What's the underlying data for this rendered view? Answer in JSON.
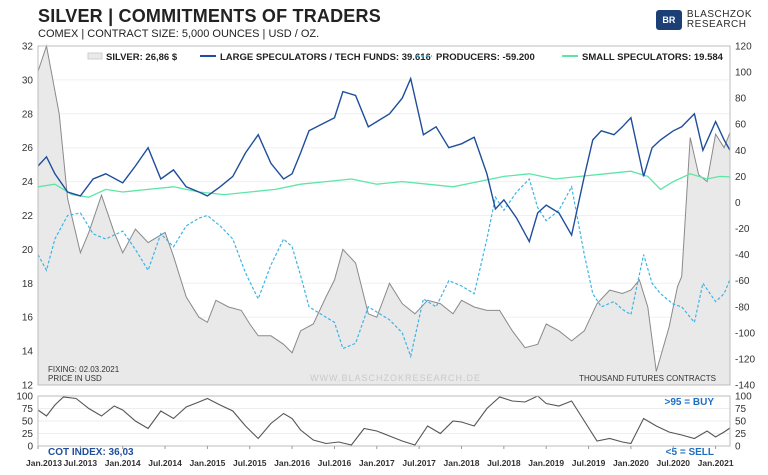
{
  "header": {
    "title": "SILVER | COMMITMENTS OF TRADERS",
    "subtitle": "COMEX | CONTRACT SIZE: 5,000 OUNCES | USD / OZ.",
    "logo_line1": "BLASCHZOK",
    "logo_line2": "RESEARCH"
  },
  "colors": {
    "silver": "#8a8a8a",
    "silver_fill": "#e9e9e9",
    "large_specs": "#1f4e9c",
    "producers": "#3cb4e6",
    "small_specs": "#5ce6a6",
    "cot": "#555555",
    "buy": "#1f6fc0"
  },
  "notes": {
    "fixing": "FIXING: 02.03.2021",
    "unit": "PRICE IN USD",
    "watermark": "WWW.BLASCHZOKRESEARCH.DE",
    "right_unit": "THOUSAND FUTURES CONTRACTS",
    "buy": ">95 = BUY",
    "sell": "<5 = SELL",
    "cot_index": "COT INDEX: 36,03"
  },
  "chart_data": [
    {
      "type": "line",
      "x_labels": [
        "Jan.2013",
        "Jul.2013",
        "Jan.2014",
        "Jul.2014",
        "Jan.2015",
        "Jul.2015",
        "Jan.2016",
        "Jul.2016",
        "Jan.2017",
        "Jul.2017",
        "Jan.2018",
        "Jul.2018",
        "Jan.2019",
        "Jul.2019",
        "Jan.2020",
        "Jul.2020",
        "Jan.2021"
      ],
      "x_range": [
        2013.0,
        2021.17
      ],
      "y_left": {
        "label": "",
        "ylim": [
          12,
          32
        ],
        "ticks": [
          12,
          14,
          16,
          18,
          20,
          22,
          24,
          26,
          28,
          30,
          32
        ]
      },
      "y_right": {
        "label": "THOUSAND FUTURES CONTRACTS",
        "ylim": [
          -140,
          120
        ],
        "ticks": [
          -140,
          -120,
          -100,
          -80,
          -60,
          -40,
          -20,
          0,
          20,
          40,
          60,
          80,
          100,
          120
        ]
      },
      "series": [
        {
          "name": "SILVER: 26,86 $",
          "axis": "left",
          "style": "area",
          "x": [
            2013.0,
            2013.1,
            2013.25,
            2013.35,
            2013.5,
            2013.6,
            2013.75,
            2013.9,
            2014.0,
            2014.15,
            2014.3,
            2014.5,
            2014.6,
            2014.75,
            2014.9,
            2015.0,
            2015.1,
            2015.25,
            2015.4,
            2015.5,
            2015.6,
            2015.75,
            2015.9,
            2016.0,
            2016.1,
            2016.25,
            2016.4,
            2016.5,
            2016.6,
            2016.75,
            2016.9,
            2017.0,
            2017.15,
            2017.3,
            2017.45,
            2017.6,
            2017.75,
            2017.9,
            2018.0,
            2018.15,
            2018.3,
            2018.45,
            2018.6,
            2018.75,
            2018.9,
            2019.0,
            2019.15,
            2019.3,
            2019.45,
            2019.6,
            2019.75,
            2019.9,
            2020.0,
            2020.1,
            2020.2,
            2020.3,
            2020.45,
            2020.55,
            2020.6,
            2020.7,
            2020.8,
            2020.9,
            2021.0,
            2021.1,
            2021.17
          ],
          "values": [
            30.5,
            32.0,
            28.0,
            23.0,
            19.8,
            21.0,
            23.2,
            21.0,
            19.8,
            21.2,
            20.4,
            21.0,
            19.6,
            17.2,
            16.0,
            15.7,
            17.0,
            16.6,
            16.4,
            15.6,
            14.9,
            14.9,
            14.4,
            13.9,
            15.2,
            15.6,
            17.2,
            18.2,
            20.0,
            19.2,
            16.2,
            16.0,
            18.0,
            16.8,
            16.2,
            17.0,
            16.8,
            16.2,
            17.0,
            16.6,
            16.4,
            16.4,
            15.2,
            14.2,
            14.4,
            15.6,
            15.2,
            14.6,
            15.2,
            16.8,
            17.6,
            17.4,
            17.6,
            18.2,
            16.6,
            12.8,
            15.4,
            17.8,
            18.4,
            26.6,
            24.4,
            24.0,
            26.8,
            26.0,
            26.9
          ]
        },
        {
          "name": "LARGE SPECULATORS / TECH FUNDS: 39.616",
          "axis": "right",
          "style": "solid",
          "x": [
            2013.0,
            2013.1,
            2013.2,
            2013.35,
            2013.5,
            2013.65,
            2013.8,
            2014.0,
            2014.15,
            2014.3,
            2014.45,
            2014.6,
            2014.75,
            2014.9,
            2015.0,
            2015.15,
            2015.3,
            2015.45,
            2015.6,
            2015.75,
            2015.9,
            2016.0,
            2016.1,
            2016.2,
            2016.35,
            2016.5,
            2016.6,
            2016.75,
            2016.9,
            2017.0,
            2017.15,
            2017.3,
            2017.4,
            2017.55,
            2017.7,
            2017.85,
            2018.0,
            2018.15,
            2018.3,
            2018.4,
            2018.5,
            2018.65,
            2018.8,
            2018.9,
            2019.0,
            2019.15,
            2019.3,
            2019.45,
            2019.55,
            2019.65,
            2019.8,
            2019.9,
            2020.0,
            2020.15,
            2020.25,
            2020.35,
            2020.5,
            2020.6,
            2020.75,
            2020.85,
            2021.0,
            2021.1,
            2021.17
          ],
          "values": [
            28,
            35,
            22,
            8,
            5,
            18,
            22,
            15,
            28,
            42,
            18,
            25,
            12,
            8,
            5,
            12,
            20,
            38,
            52,
            30,
            18,
            22,
            38,
            55,
            60,
            65,
            85,
            82,
            58,
            62,
            68,
            80,
            95,
            52,
            58,
            42,
            45,
            50,
            22,
            -5,
            2,
            -12,
            -30,
            -8,
            -2,
            -8,
            -25,
            20,
            48,
            55,
            52,
            58,
            65,
            20,
            42,
            48,
            55,
            58,
            68,
            40,
            62,
            48,
            40
          ]
        },
        {
          "name": "PRODUCERS: -59.200",
          "axis": "right",
          "style": "dashed",
          "x": [
            2013.0,
            2013.1,
            2013.2,
            2013.35,
            2013.5,
            2013.65,
            2013.8,
            2014.0,
            2014.15,
            2014.3,
            2014.45,
            2014.6,
            2014.75,
            2014.9,
            2015.0,
            2015.15,
            2015.3,
            2015.45,
            2015.6,
            2015.75,
            2015.9,
            2016.0,
            2016.1,
            2016.2,
            2016.35,
            2016.5,
            2016.6,
            2016.75,
            2016.9,
            2017.0,
            2017.15,
            2017.3,
            2017.4,
            2017.55,
            2017.7,
            2017.85,
            2018.0,
            2018.15,
            2018.3,
            2018.4,
            2018.5,
            2018.65,
            2018.8,
            2018.9,
            2019.0,
            2019.15,
            2019.3,
            2019.45,
            2019.55,
            2019.65,
            2019.8,
            2019.9,
            2020.0,
            2020.15,
            2020.25,
            2020.35,
            2020.5,
            2020.6,
            2020.75,
            2020.85,
            2021.0,
            2021.1,
            2021.17
          ],
          "values": [
            -40,
            -52,
            -28,
            -10,
            -8,
            -24,
            -28,
            -22,
            -36,
            -52,
            -24,
            -34,
            -18,
            -12,
            -10,
            -18,
            -28,
            -54,
            -74,
            -48,
            -28,
            -34,
            -56,
            -80,
            -86,
            -92,
            -112,
            -108,
            -80,
            -84,
            -90,
            -100,
            -118,
            -74,
            -80,
            -60,
            -64,
            -70,
            -28,
            4,
            -6,
            8,
            18,
            -4,
            -14,
            -6,
            12,
            -40,
            -70,
            -80,
            -76,
            -82,
            -86,
            -40,
            -62,
            -70,
            -78,
            -80,
            -92,
            -62,
            -76,
            -70,
            -59
          ]
        },
        {
          "name": "SMALL SPECULATORS: 19.584",
          "axis": "right",
          "style": "solid",
          "x": [
            2013.0,
            2013.2,
            2013.4,
            2013.6,
            2013.8,
            2014.0,
            2014.3,
            2014.6,
            2014.9,
            2015.2,
            2015.5,
            2015.8,
            2016.1,
            2016.4,
            2016.7,
            2017.0,
            2017.3,
            2017.6,
            2017.9,
            2018.2,
            2018.5,
            2018.8,
            2019.1,
            2019.4,
            2019.7,
            2020.0,
            2020.2,
            2020.35,
            2020.5,
            2020.7,
            2020.9,
            2021.05,
            2021.17
          ],
          "values": [
            12,
            14,
            6,
            4,
            10,
            8,
            10,
            12,
            8,
            6,
            8,
            10,
            14,
            16,
            18,
            14,
            16,
            14,
            12,
            16,
            20,
            22,
            18,
            20,
            22,
            24,
            20,
            10,
            16,
            22,
            18,
            20,
            19.6
          ]
        }
      ]
    },
    {
      "type": "line",
      "x_range": [
        2013.0,
        2021.17
      ],
      "ylim": [
        0,
        100
      ],
      "y_ticks": [
        0,
        25,
        50,
        75,
        100
      ],
      "series": [
        {
          "name": "COT INDEX: 36,03",
          "x": [
            2013.0,
            2013.1,
            2013.2,
            2013.3,
            2013.45,
            2013.6,
            2013.75,
            2013.9,
            2014.0,
            2014.15,
            2014.3,
            2014.45,
            2014.6,
            2014.75,
            2014.9,
            2015.0,
            2015.15,
            2015.3,
            2015.45,
            2015.6,
            2015.75,
            2015.9,
            2016.0,
            2016.1,
            2016.25,
            2016.4,
            2016.55,
            2016.7,
            2016.85,
            2017.0,
            2017.15,
            2017.3,
            2017.45,
            2017.6,
            2017.75,
            2017.9,
            2018.0,
            2018.15,
            2018.3,
            2018.45,
            2018.6,
            2018.75,
            2018.9,
            2019.0,
            2019.15,
            2019.3,
            2019.45,
            2019.6,
            2019.75,
            2019.9,
            2020.0,
            2020.15,
            2020.3,
            2020.45,
            2020.6,
            2020.75,
            2020.9,
            2021.0,
            2021.1,
            2021.17
          ],
          "values": [
            72,
            60,
            82,
            98,
            95,
            75,
            60,
            80,
            72,
            50,
            35,
            70,
            55,
            78,
            88,
            95,
            82,
            70,
            40,
            15,
            45,
            65,
            55,
            32,
            12,
            5,
            8,
            2,
            35,
            30,
            20,
            10,
            2,
            40,
            25,
            50,
            48,
            40,
            75,
            98,
            90,
            88,
            100,
            85,
            80,
            90,
            50,
            10,
            15,
            8,
            5,
            55,
            40,
            28,
            22,
            15,
            30,
            18,
            28,
            36
          ]
        }
      ]
    }
  ]
}
